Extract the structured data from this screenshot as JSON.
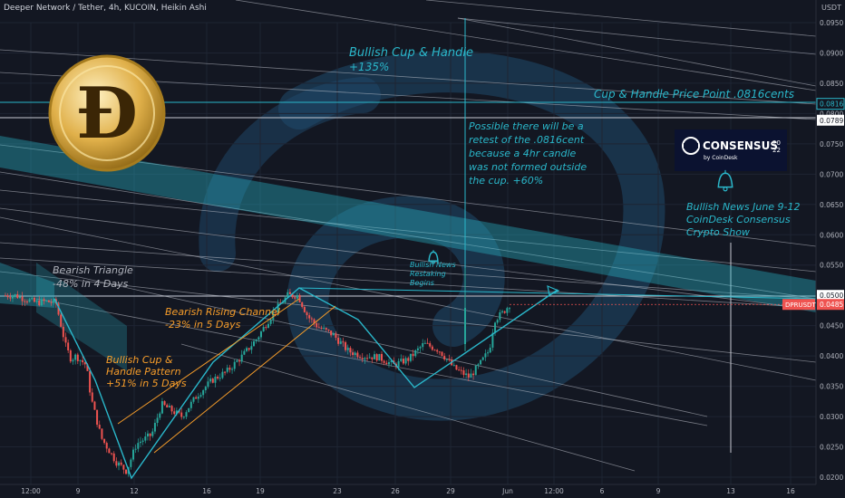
{
  "header": {
    "symbol": "Deeper Network / Tether, 4h, KUCOIN, Heikin Ashi",
    "unit": "USDT"
  },
  "colors": {
    "background": "#131722",
    "up": "#26a69a",
    "down": "#ef5350",
    "teal_text": "#2ab7ca",
    "orange_text": "#f59c2a",
    "price_tag": "#ef5350"
  },
  "chart_data": {
    "type": "candlestick",
    "series_label": "DPRUSDT",
    "last_price": "0.0485",
    "tagged_levels": [
      "0.0816",
      "0.0789",
      "0.0500"
    ],
    "y_ticks": [
      "0.0950",
      "0.0900",
      "0.0850",
      "0.0800",
      "0.0750",
      "0.0700",
      "0.0650",
      "0.0600",
      "0.0550",
      "0.0500",
      "0.0450",
      "0.0400",
      "0.0350",
      "0.0300",
      "0.0250",
      "0.0200"
    ],
    "x_ticks": [
      "12:00",
      "9",
      "12",
      "16",
      "19",
      "23",
      "26",
      "29",
      "Jun",
      "12:00",
      "6",
      "9",
      "13",
      "16"
    ],
    "price_path": [
      [
        0,
        0.05
      ],
      [
        0.02,
        0.05
      ],
      [
        0.06,
        0.0488
      ],
      [
        0.08,
        0.049
      ],
      [
        0.1,
        0.0488
      ],
      [
        0.12,
        0.0415
      ],
      [
        0.13,
        0.0395
      ],
      [
        0.14,
        0.04
      ],
      [
        0.16,
        0.0385
      ],
      [
        0.17,
        0.033
      ],
      [
        0.19,
        0.0265
      ],
      [
        0.22,
        0.0225
      ],
      [
        0.24,
        0.021
      ],
      [
        0.26,
        0.0255
      ],
      [
        0.29,
        0.027
      ],
      [
        0.31,
        0.032
      ],
      [
        0.33,
        0.031
      ],
      [
        0.35,
        0.03
      ],
      [
        0.38,
        0.0335
      ],
      [
        0.41,
        0.036
      ],
      [
        0.44,
        0.0375
      ],
      [
        0.47,
        0.04
      ],
      [
        0.5,
        0.043
      ],
      [
        0.53,
        0.047
      ],
      [
        0.56,
        0.05
      ],
      [
        0.58,
        0.05
      ],
      [
        0.6,
        0.0465
      ],
      [
        0.62,
        0.0448
      ],
      [
        0.65,
        0.0435
      ],
      [
        0.68,
        0.0408
      ],
      [
        0.71,
        0.04
      ],
      [
        0.74,
        0.0398
      ],
      [
        0.77,
        0.0385
      ],
      [
        0.8,
        0.0395
      ],
      [
        0.83,
        0.042
      ],
      [
        0.86,
        0.041
      ],
      [
        0.89,
        0.038
      ],
      [
        0.92,
        0.0365
      ],
      [
        0.94,
        0.0385
      ],
      [
        0.96,
        0.041
      ],
      [
        0.97,
        0.046
      ],
      [
        0.985,
        0.047
      ],
      [
        1.0,
        0.0485
      ]
    ],
    "annotations": [
      {
        "text": "Bullish Cup & Handle",
        "color": "teal"
      },
      {
        "text": "+135%",
        "color": "teal"
      },
      {
        "text": "Cup & Handle Price Point .0816cents",
        "color": "teal"
      },
      {
        "text": "Possible there will be a",
        "color": "teal"
      },
      {
        "text": "retest of the .0816cent",
        "color": "teal"
      },
      {
        "text": "because a 4hr candle",
        "color": "teal"
      },
      {
        "text": "was not formed outside",
        "color": "teal"
      },
      {
        "text": "the cup. +60%",
        "color": "teal"
      },
      {
        "text": "Bullish News June 9-12",
        "color": "teal"
      },
      {
        "text": "CoinDesk Consensus",
        "color": "teal"
      },
      {
        "text": "Crypto Show",
        "color": "teal"
      },
      {
        "text": "Bullish News",
        "color": "teal"
      },
      {
        "text": "Restaking",
        "color": "teal"
      },
      {
        "text": "Begins",
        "color": "teal"
      },
      {
        "text": "Bearish Triangle",
        "color": "gray"
      },
      {
        "text": "-48% in 4 Days",
        "color": "gray"
      },
      {
        "text": "Bearish Rising Channel",
        "color": "orange"
      },
      {
        "text": "-23% in 5 Days",
        "color": "orange"
      },
      {
        "text": "Bullish Cup &",
        "color": "orange"
      },
      {
        "text": "Handle Pattern",
        "color": "orange"
      },
      {
        "text": "+51% in 5 Days",
        "color": "orange"
      }
    ],
    "logo": {
      "title": "CONSENSUS",
      "year_top": "20",
      "year_bottom": "22",
      "byline": "by CoinDesk"
    },
    "icons": [
      "bitcoin-logo-icon",
      "bell-icon",
      "watermark-swirl-icon"
    ]
  }
}
